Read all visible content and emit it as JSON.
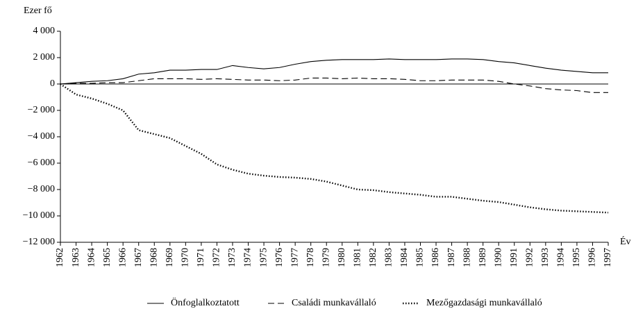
{
  "chart_data": {
    "type": "line",
    "y_label": "Ezer fő",
    "x_label": "Év",
    "categories": [
      "1962",
      "1963",
      "1964",
      "1965",
      "1966",
      "1967",
      "1968",
      "1969",
      "1970",
      "1971",
      "1972",
      "1973",
      "1974",
      "1975",
      "1976",
      "1977",
      "1978",
      "1979",
      "1980",
      "1981",
      "1982",
      "1983",
      "1984",
      "1985",
      "1986",
      "1987",
      "1988",
      "1989",
      "1990",
      "1991",
      "1992",
      "1993",
      "1994",
      "1995",
      "1996",
      "1997"
    ],
    "series": [
      {
        "name": "Önfoglalkoztatott",
        "color": "#000000",
        "style": "solid",
        "values": [
          0,
          100,
          200,
          250,
          400,
          750,
          850,
          1050,
          1050,
          1100,
          1100,
          1400,
          1250,
          1150,
          1250,
          1500,
          1700,
          1800,
          1850,
          1850,
          1850,
          1900,
          1850,
          1850,
          1850,
          1900,
          1900,
          1850,
          1700,
          1600,
          1400,
          1200,
          1050,
          950,
          850,
          850
        ]
      },
      {
        "name": "Családi munkavállaló",
        "color": "#000000",
        "style": "dashed",
        "values": [
          0,
          50,
          50,
          100,
          100,
          250,
          400,
          400,
          400,
          350,
          400,
          350,
          300,
          300,
          250,
          300,
          450,
          450,
          400,
          450,
          400,
          400,
          350,
          250,
          250,
          300,
          300,
          300,
          200,
          0,
          -150,
          -350,
          -450,
          -500,
          -650,
          -650
        ]
      },
      {
        "name": "Mezőgazdasági munkavállaló",
        "color": "#000000",
        "style": "dotted",
        "values": [
          0,
          -800,
          -1100,
          -1500,
          -2000,
          -3500,
          -3800,
          -4100,
          -4700,
          -5300,
          -6100,
          -6500,
          -6800,
          -6950,
          -7050,
          -7100,
          -7200,
          -7400,
          -7700,
          -8000,
          -8050,
          -8200,
          -8300,
          -8400,
          -8550,
          -8550,
          -8700,
          -8850,
          -8950,
          -9150,
          -9350,
          -9500,
          -9600,
          -9650,
          -9700,
          -9750
        ]
      }
    ],
    "ylim": [
      -12000,
      4000
    ],
    "yticks": [
      {
        "value": 4000,
        "label": "4 000"
      },
      {
        "value": 2000,
        "label": "2 000"
      },
      0,
      {
        "value": -2000,
        "label": "−2 000"
      },
      {
        "value": -4000,
        "label": "−4 000"
      },
      {
        "value": -6000,
        "label": "−6 000"
      },
      {
        "value": -8000,
        "label": "−8 000"
      },
      {
        "value": -10000,
        "label": "−10 000"
      },
      {
        "value": -12000,
        "label": "−12 000"
      }
    ],
    "zero_line": true,
    "legend": "bottom"
  }
}
